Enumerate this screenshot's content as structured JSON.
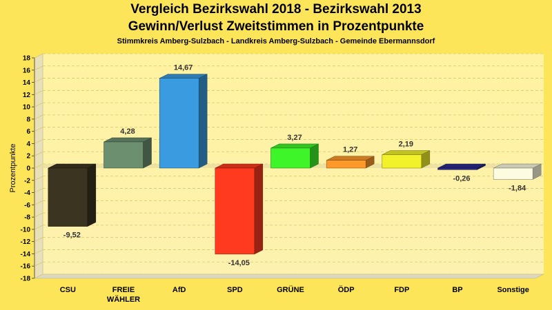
{
  "chart_data": {
    "type": "bar",
    "title": "Vergleich Bezirkswahl 2018 - Bezirkswahl 2013",
    "subtitle": "Gewinn/Verlust Zweitstimmen in Prozentpunkte",
    "caption": "Stimmkreis Amberg-Sulzbach - Landkreis Amberg-Sulzbach - Gemeinde Ebermannsdorf",
    "ylabel": "Prozentpunkte",
    "xlabel": "",
    "ylim": [
      -18,
      18
    ],
    "ytick_step": 2,
    "grid": true,
    "categories": [
      "CSU",
      "FREIE WÄHLER",
      "AfD",
      "SPD",
      "GRÜNE",
      "ÖDP",
      "FDP",
      "BP",
      "Sonstige"
    ],
    "category_lines": [
      [
        "CSU"
      ],
      [
        "FREIE",
        "WÄHLER"
      ],
      [
        "AfD"
      ],
      [
        "SPD"
      ],
      [
        "GRÜNE"
      ],
      [
        "ÖDP"
      ],
      [
        "FDP"
      ],
      [
        "BP"
      ],
      [
        "Sonstige"
      ]
    ],
    "values": [
      -9.52,
      4.28,
      14.67,
      -14.05,
      3.27,
      1.27,
      2.19,
      -0.26,
      -1.84
    ],
    "value_labels": [
      "-9,52",
      "4,28",
      "14,67",
      "-14,05",
      "3,27",
      "1,27",
      "2,19",
      "-0,26",
      "-1,84"
    ],
    "colors": [
      "#3b3420",
      "#6b8f6f",
      "#3a9be0",
      "#ff3a1e",
      "#3ef52a",
      "#ff9a2a",
      "#f2f22a",
      "#2a2a8c",
      "#fdfbe0"
    ]
  },
  "colors": {
    "background": "#fde55a",
    "plot_top": "#fff4a0",
    "plot_bottom": "#fdf0a8"
  }
}
